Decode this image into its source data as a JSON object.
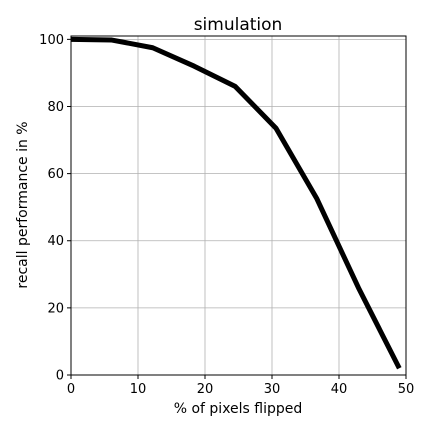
{
  "chart_data": {
    "type": "line",
    "title": "simulation",
    "xlabel": "% of pixels flipped",
    "ylabel": "recall performance in %",
    "xlim": [
      0,
      50
    ],
    "ylim": [
      0,
      101
    ],
    "xticks": [
      0,
      10,
      20,
      30,
      40,
      50
    ],
    "yticks": [
      0,
      20,
      40,
      60,
      80,
      100
    ],
    "grid": true,
    "line_color": "#000000",
    "series": [
      {
        "x": [
          0,
          6.1,
          12.2,
          18.4,
          24.5,
          30.6,
          36.7,
          42.9,
          49.0
        ],
        "y": [
          100,
          99.8,
          97.5,
          92,
          86,
          73.5,
          52.5,
          26,
          2
        ]
      }
    ]
  }
}
